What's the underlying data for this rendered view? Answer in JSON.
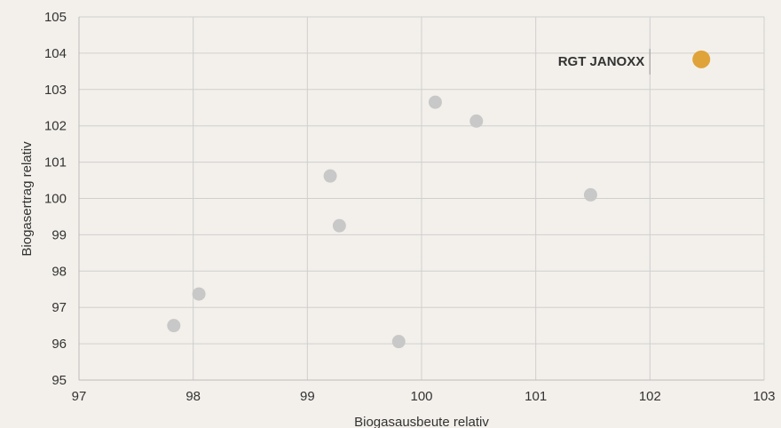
{
  "chart_data": {
    "type": "scatter",
    "title": "",
    "xlabel": "Biogasausbeute relativ",
    "ylabel": "Biogasertrag relativ",
    "xlim": [
      97,
      103
    ],
    "ylim": [
      95,
      105
    ],
    "x_ticks": [
      "97",
      "98",
      "99",
      "100",
      "101",
      "102",
      "103"
    ],
    "y_ticks": [
      "95",
      "96",
      "97",
      "98",
      "99",
      "100",
      "101",
      "102",
      "103",
      "104",
      "105"
    ],
    "grid": true,
    "colors": {
      "default": "#c8c8c8",
      "highlight": "#e0a33a",
      "grid": "#cfcfcf",
      "axis": "#bdbdbd"
    },
    "points": [
      {
        "x": 97.83,
        "y": 96.5
      },
      {
        "x": 98.05,
        "y": 97.37
      },
      {
        "x": 99.2,
        "y": 100.62
      },
      {
        "x": 99.28,
        "y": 99.25
      },
      {
        "x": 99.8,
        "y": 96.06
      },
      {
        "x": 100.12,
        "y": 102.65
      },
      {
        "x": 100.48,
        "y": 102.13
      },
      {
        "x": 101.48,
        "y": 100.1
      },
      {
        "x": 102.45,
        "y": 103.83,
        "label": "RGT JANOXX",
        "highlight": true
      }
    ]
  }
}
